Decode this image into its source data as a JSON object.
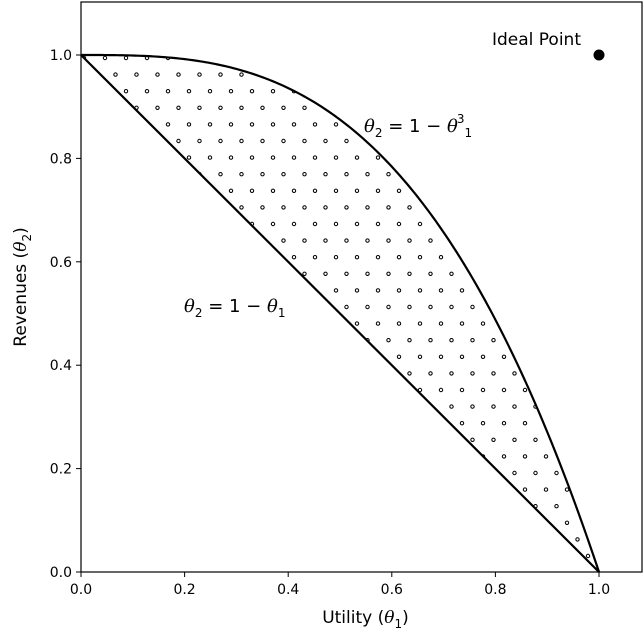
{
  "chart_data": {
    "type": "line",
    "xlabel": {
      "text": "Utility (",
      "symbol": "θ",
      "sub": "1",
      "close": ")"
    },
    "ylabel": {
      "text": "Revenues (",
      "symbol": "θ",
      "sub": "2",
      "close": ")"
    },
    "xlim": [
      0.0,
      1.0
    ],
    "ylim": [
      0.0,
      1.0
    ],
    "xticks": [
      "0.0",
      "0.2",
      "0.4",
      "0.6",
      "0.8",
      "1.0"
    ],
    "yticks": [
      "0.0",
      "0.2",
      "0.4",
      "0.6",
      "0.8",
      "1.0"
    ],
    "grid": false,
    "series": [
      {
        "label": {
          "lhs": "θ",
          "lhs_sub": "2",
          "eq": " = 1 − ",
          "rhs": "θ",
          "rhs_sub": "1",
          "rhs_sup": ""
        },
        "function": "1 - x",
        "x": [
          0.0,
          1.0
        ],
        "y": [
          1.0,
          0.0
        ]
      },
      {
        "label": {
          "lhs": "θ",
          "lhs_sub": "2",
          "eq": " = 1 − ",
          "rhs": "θ",
          "rhs_sub": "1",
          "rhs_sup": "3"
        },
        "function": "1 - x^3",
        "x": [
          0.0,
          0.2,
          0.4,
          0.5,
          0.6,
          0.7,
          0.8,
          0.9,
          1.0
        ],
        "y": [
          1.0,
          0.992,
          0.936,
          0.875,
          0.784,
          0.657,
          0.488,
          0.271,
          0.0
        ]
      }
    ],
    "shaded_region": {
      "pattern": "dots",
      "between": [
        "1 - x",
        "1 - x^3"
      ]
    },
    "ideal_point": {
      "label": "Ideal Point",
      "x": 1.0,
      "y": 1.0
    }
  }
}
